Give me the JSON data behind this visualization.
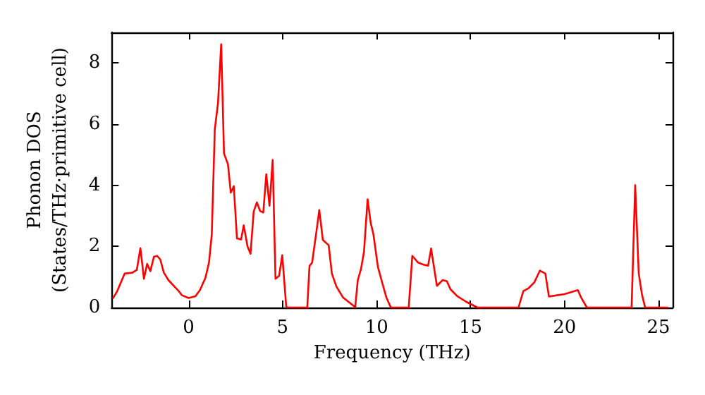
{
  "chart_data": {
    "type": "line",
    "xlabel": "Frequency (THz)",
    "ylabel": "Phonon DOS\n(States/THz·primitive cell)",
    "x": [
      -4.04,
      -3.8,
      -3.41,
      -3.0,
      -2.76,
      -2.57,
      -2.38,
      -2.21,
      -2.04,
      -1.85,
      -1.68,
      -1.51,
      -1.32,
      -1.08,
      -0.72,
      -0.53,
      -0.36,
      0,
      0.36,
      0.6,
      0.89,
      1.08,
      1.23,
      1.39,
      1.56,
      1.73,
      1.88,
      2.09,
      2.24,
      2.4,
      2.57,
      2.79,
      2.93,
      3.13,
      3.29,
      3.46,
      3.63,
      3.8,
      3.97,
      4.13,
      4.3,
      4.47,
      4.62,
      4.81,
      4.98,
      5.19,
      5.24,
      6.31,
      6.43,
      6.57,
      6.81,
      6.95,
      7.14,
      7.45,
      7.62,
      7.86,
      8.21,
      8.81,
      8.86,
      9.0,
      9.17,
      9.33,
      9.52,
      9.69,
      9.83,
      10.07,
      10.29,
      10.52,
      10.76,
      11.71,
      11.9,
      12.21,
      12.5,
      12.74,
      12.9,
      13.21,
      13.52,
      13.74,
      13.93,
      14.29,
      14.76,
      15.24,
      15.36,
      17.55,
      17.81,
      18.1,
      18.4,
      18.69,
      18.98,
      19.17,
      20,
      20.71,
      20.88,
      21.19,
      23.57,
      23.76,
      23.95,
      24.12,
      24.29,
      25.52
    ],
    "series": [
      {
        "color": "#ff0000",
        "values": [
          0.29,
          0.54,
          1.11,
          1.14,
          1.23,
          1.94,
          0.94,
          1.43,
          1.19,
          1.66,
          1.69,
          1.57,
          1.14,
          0.9,
          0.66,
          0.54,
          0.4,
          0.31,
          0.37,
          0.57,
          0.97,
          1.47,
          2.4,
          5.83,
          6.69,
          8.61,
          5.04,
          4.69,
          3.76,
          3.97,
          2.26,
          2.23,
          2.69,
          2.0,
          1.76,
          3.14,
          3.44,
          3.16,
          3.11,
          4.36,
          3.33,
          4.83,
          0.94,
          1.04,
          1.71,
          0.04,
          0,
          0,
          1.36,
          1.47,
          2.54,
          3.19,
          2.21,
          2.04,
          1.11,
          0.69,
          0.33,
          0.04,
          0,
          0.9,
          1.26,
          1.83,
          3.54,
          2.76,
          2.4,
          1.33,
          0.83,
          0.33,
          0,
          0,
          1.69,
          1.47,
          1.4,
          1.37,
          1.93,
          0.71,
          0.9,
          0.86,
          0.6,
          0.37,
          0.19,
          0.04,
          0,
          0,
          0.54,
          0.64,
          0.83,
          1.21,
          1.11,
          0.36,
          0.44,
          0.57,
          0.33,
          0,
          0,
          4.0,
          1.11,
          0.43,
          0,
          0
        ]
      }
    ],
    "xlim": [
      -4.1,
      25.75
    ],
    "ylim": [
      0,
      9
    ],
    "xticks": [
      0,
      5,
      10,
      15,
      20,
      25
    ],
    "yticks": [
      0,
      2,
      4,
      6,
      8
    ],
    "grid": false,
    "marker": "none",
    "line_style": "solid"
  }
}
